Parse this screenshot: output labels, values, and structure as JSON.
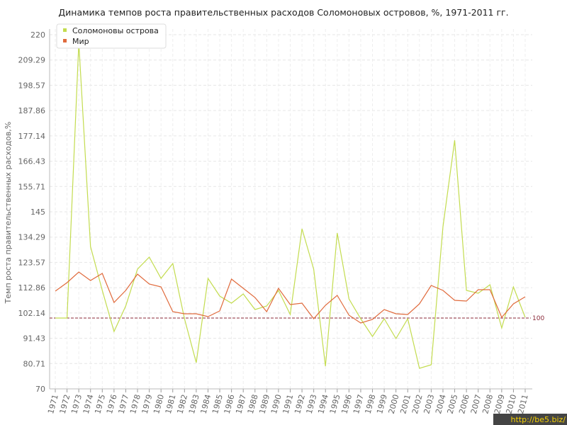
{
  "chart_data": {
    "type": "line",
    "title": "Динамика темпов роста правительственных расходов Соломоновых островов, %, 1971-2011 гг.",
    "y_label": "Темп роста правительственных расходов,%",
    "categories": [
      "1971",
      "1972",
      "1973",
      "1974",
      "1975",
      "1976",
      "1977",
      "1978",
      "1979",
      "1980",
      "1981",
      "1982",
      "1983",
      "1984",
      "1985",
      "1986",
      "1987",
      "1988",
      "1989",
      "1990",
      "1991",
      "1992",
      "1993",
      "1994",
      "1995",
      "1996",
      "1997",
      "1998",
      "1999",
      "2000",
      "2001",
      "2002",
      "2003",
      "2004",
      "2005",
      "2006",
      "2007",
      "2008",
      "2009",
      "2010",
      "2011"
    ],
    "series": [
      {
        "name": "Соломоновы острова",
        "color": "#c3dc4f",
        "values": [
          100,
          100,
          216.7,
          130.3,
          111.7,
          94.3,
          105.1,
          120.7,
          125.8,
          116.8,
          123.1,
          99.7,
          81.1,
          116.8,
          109.3,
          106.3,
          110.2,
          103.6,
          105.1,
          111.7,
          101.5,
          137.8,
          120.7,
          79.6,
          136,
          108.1,
          99.7,
          92.2,
          99.7,
          91.3,
          99.7,
          78.7,
          80.2,
          138.7,
          175.3,
          111.7,
          110.5,
          114.1,
          95.8,
          113.2,
          100.3
        ]
      },
      {
        "name": "Мир",
        "color": "#e06a3c",
        "values": [
          111.4,
          115,
          119.5,
          115.9,
          118.9,
          106.6,
          111.7,
          118.6,
          114.4,
          113.2,
          102.7,
          101.8,
          101.8,
          100.6,
          103,
          116.5,
          112.6,
          108.7,
          102.7,
          112.6,
          105.7,
          106.3,
          99.7,
          105.4,
          109.6,
          101.2,
          97.9,
          99.4,
          103.6,
          101.8,
          101.5,
          106,
          113.8,
          111.7,
          107.5,
          107.2,
          112,
          112,
          100.3,
          106,
          109
        ]
      }
    ],
    "ylim": [
      70,
      220
    ],
    "yticks": [
      70,
      80.71,
      91.43,
      102.14,
      112.86,
      123.57,
      134.29,
      145,
      155.71,
      166.43,
      177.14,
      187.86,
      198.57,
      209.29,
      220
    ],
    "grid": true,
    "reference_line": 100,
    "legend": "top-left",
    "watermark": "http://be5.biz/"
  }
}
